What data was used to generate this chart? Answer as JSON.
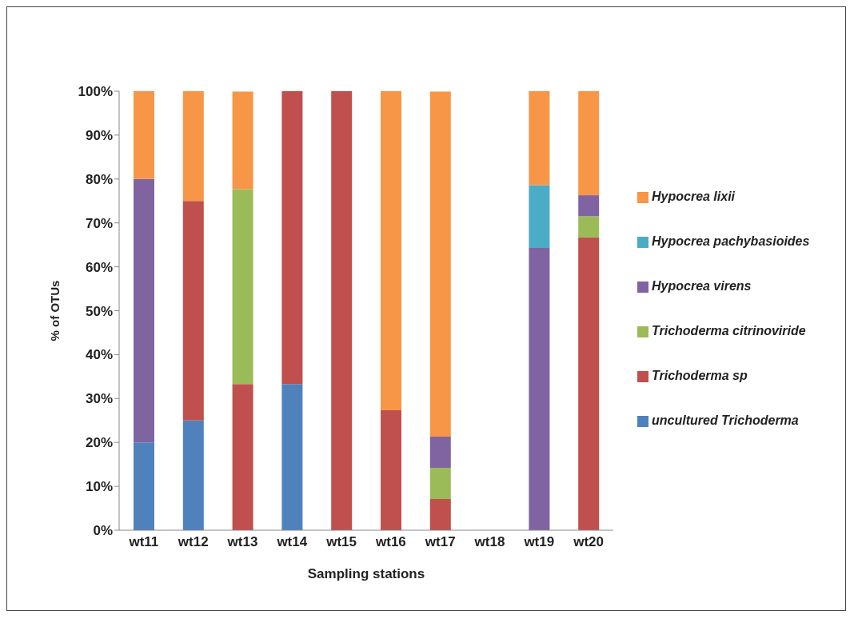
{
  "chart_data": {
    "type": "bar",
    "stacked": true,
    "xlabel": "Sampling stations",
    "ylabel": "% of OTUs",
    "categories": [
      "wt11",
      "wt12",
      "wt13",
      "wt14",
      "wt15",
      "wt16",
      "wt17",
      "wt18",
      "wt19",
      "wt20"
    ],
    "series": [
      {
        "name": "uncultured Trichoderma",
        "color": "#4f81bd",
        "values": [
          20,
          25,
          0,
          33.3,
          0,
          0,
          0,
          0,
          0,
          0
        ]
      },
      {
        "name": "Trichoderma sp",
        "color": "#c0504d",
        "values": [
          0,
          50,
          33.3,
          66.7,
          100,
          27.3,
          7.1,
          0,
          0,
          66.7
        ]
      },
      {
        "name": "Trichoderma citrinoviride",
        "color": "#9bbb59",
        "values": [
          0,
          0,
          44.4,
          0,
          0,
          0,
          7.1,
          0,
          0,
          4.8
        ]
      },
      {
        "name": "Hypocrea virens",
        "color": "#8064a2",
        "values": [
          60,
          0,
          0,
          0,
          0,
          0,
          7.1,
          0,
          64.3,
          4.8
        ]
      },
      {
        "name": "Hypocrea pachybasioides",
        "color": "#4bacc6",
        "values": [
          0,
          0,
          0,
          0,
          0,
          0,
          0,
          0,
          14.3,
          0
        ]
      },
      {
        "name": "Hypocrea lixii",
        "color": "#f79646",
        "values": [
          20,
          25,
          22.2,
          0,
          0,
          72.7,
          78.6,
          0,
          21.4,
          23.8
        ]
      }
    ],
    "ylim": [
      0,
      100
    ],
    "yticks": [
      {
        "value": 0,
        "label": "0%"
      },
      {
        "value": 10,
        "label": "10%"
      },
      {
        "value": 20,
        "label": "20%"
      },
      {
        "value": 30,
        "label": "30%"
      },
      {
        "value": 40,
        "label": "40%"
      },
      {
        "value": 50,
        "label": "50%"
      },
      {
        "value": 60,
        "label": "60%"
      },
      {
        "value": 70,
        "label": "70%"
      },
      {
        "value": 80,
        "label": "80%"
      },
      {
        "value": 90,
        "label": "90%"
      },
      {
        "value": 100,
        "label": "100%"
      }
    ],
    "grid": false,
    "legend": "right"
  }
}
